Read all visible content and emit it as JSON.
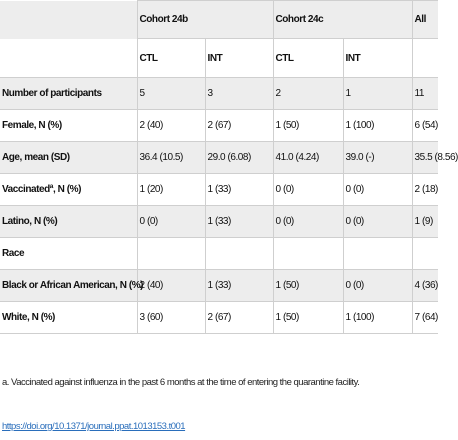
{
  "table": {
    "group_headers": [
      "Cohort 24b",
      "Cohort 24c",
      "All"
    ],
    "sub_headers": [
      "CTL",
      "INT",
      "CTL",
      "INT"
    ],
    "rows": [
      {
        "label": "Number of participants",
        "cells": [
          "5",
          "3",
          "2",
          "1",
          "11"
        ]
      },
      {
        "label": "Female, N (%)",
        "cells": [
          "2 (40)",
          "2 (67)",
          "1 (50)",
          "1 (100)",
          "6 (54)"
        ]
      },
      {
        "label": "Age, mean (SD)",
        "cells": [
          "36.4 (10.5)",
          "29.0 (6.08)",
          "41.0 (4.24)",
          "39.0 (-)",
          "35.5 (8.56)"
        ]
      },
      {
        "label": "Vaccinatedª, N (%)",
        "cells": [
          "1 (20)",
          "1 (33)",
          "0 (0)",
          "0 (0)",
          "2 (18)"
        ]
      },
      {
        "label": "Latino, N (%)",
        "cells": [
          "0 (0)",
          "1 (33)",
          "0 (0)",
          "0 (0)",
          "1 (9)"
        ]
      },
      {
        "label": "Race",
        "cells": [
          "",
          "",
          "",
          "",
          ""
        ]
      },
      {
        "label": "Black or African American, N (%)",
        "cells": [
          "2 (40)",
          "1 (33)",
          "1 (50)",
          "0 (0)",
          "4 (36)"
        ]
      },
      {
        "label": "White, N (%)",
        "cells": [
          "3 (60)",
          "2 (67)",
          "1 (50)",
          "1 (100)",
          "7 (64)"
        ]
      }
    ]
  },
  "footnote": "a. Vaccinated against influenza in the past 6 months at the time of entering the quarantine facility.",
  "doi": "https://doi.org/10.1371/journal.ppat.1013153.t001"
}
